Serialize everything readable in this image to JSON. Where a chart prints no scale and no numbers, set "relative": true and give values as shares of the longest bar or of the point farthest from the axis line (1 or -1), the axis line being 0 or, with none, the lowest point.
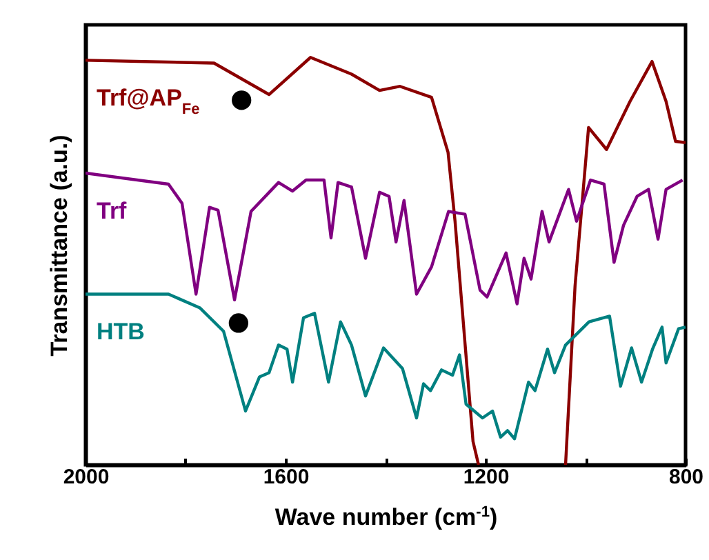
{
  "chart_data": {
    "type": "line",
    "relative": true,
    "xlabel": "Wave number (cm$^{-1}$)",
    "ylabel": "Transmittance (a.u.)",
    "xlim": [
      2000,
      800
    ],
    "xticks": [
      2000,
      {
        "value": 1800,
        "label": null
      },
      1600,
      {
        "value": 1400,
        "label": null
      },
      1200,
      {
        "value": 1000,
        "label": null
      },
      800
    ],
    "series": [
      {
        "name": "Trf@AP$_{Fe}$",
        "color": "#8b0000",
        "x": [
          2000,
          1743,
          1633,
          1550,
          1468,
          1412,
          1371,
          1308,
          1275,
          1261,
          1225,
          1214,
          1100,
          1040,
          1021,
          994,
          958,
          911,
          867,
          839,
          820,
          800
        ],
        "values": [
          0.993,
          0.986,
          0.909,
          1.0,
          0.959,
          0.919,
          0.929,
          0.902,
          0.767,
          0.598,
          0.057,
          0,
          null,
          0,
          0.439,
          0.828,
          0.774,
          0.892,
          0.99,
          0.892,
          0.794,
          0.791
        ]
      },
      {
        "name": "Trf",
        "color": "#800080",
        "x": [
          2000,
          1834,
          1807,
          1779,
          1752,
          1735,
          1702,
          1669,
          1614,
          1586,
          1559,
          1523,
          1509,
          1495,
          1468,
          1440,
          1412,
          1393,
          1379,
          1363,
          1338,
          1308,
          1274,
          1241,
          1211,
          1197,
          1159,
          1137,
          1123,
          1109,
          1087,
          1073,
          1034,
          1018,
          990,
          963,
          943,
          924,
          897,
          874,
          855,
          839,
          806
        ],
        "values": [
          0.716,
          0.689,
          0.642,
          0.419,
          0.632,
          0.625,
          0.405,
          0.622,
          0.693,
          0.672,
          0.699,
          0.699,
          0.557,
          0.693,
          0.682,
          0.507,
          0.669,
          0.659,
          0.547,
          0.649,
          0.419,
          0.486,
          0.622,
          0.615,
          0.429,
          0.412,
          0.52,
          0.395,
          0.507,
          0.456,
          0.622,
          0.547,
          0.676,
          0.598,
          0.699,
          0.689,
          0.497,
          0.588,
          0.659,
          0.676,
          0.554,
          0.676,
          0.699
        ]
      },
      {
        "name": "HTB",
        "color": "#008080",
        "x": [
          2000,
          1834,
          1771,
          1724,
          1680,
          1652,
          1633,
          1614,
          1597,
          1586,
          1564,
          1542,
          1514,
          1490,
          1468,
          1440,
          1404,
          1366,
          1338,
          1324,
          1310,
          1288,
          1266,
          1252,
          1239,
          1206,
          1186,
          1170,
          1156,
          1142,
          1114,
          1101,
          1076,
          1062,
          1040,
          993,
          952,
          930,
          908,
          888,
          866,
          847,
          839,
          814,
          800
        ],
        "values": [
          0.419,
          0.419,
          0.385,
          0.328,
          0.132,
          0.216,
          0.226,
          0.294,
          0.284,
          0.203,
          0.361,
          0.372,
          0.203,
          0.351,
          0.294,
          0.169,
          0.287,
          0.236,
          0.115,
          0.199,
          0.182,
          0.233,
          0.22,
          0.27,
          0.149,
          0.115,
          0.132,
          0.068,
          0.084,
          0.064,
          0.203,
          0.182,
          0.284,
          0.226,
          0.294,
          0.351,
          0.365,
          0.193,
          0.287,
          0.203,
          0.284,
          0.338,
          0.25,
          0.334,
          0.338
        ]
      },
      {
        "type": "scatter",
        "marker": "circle",
        "color": "#000000",
        "x": [
          1688,
          1694
        ],
        "values": [
          0.895,
          0.348
        ]
      }
    ]
  }
}
